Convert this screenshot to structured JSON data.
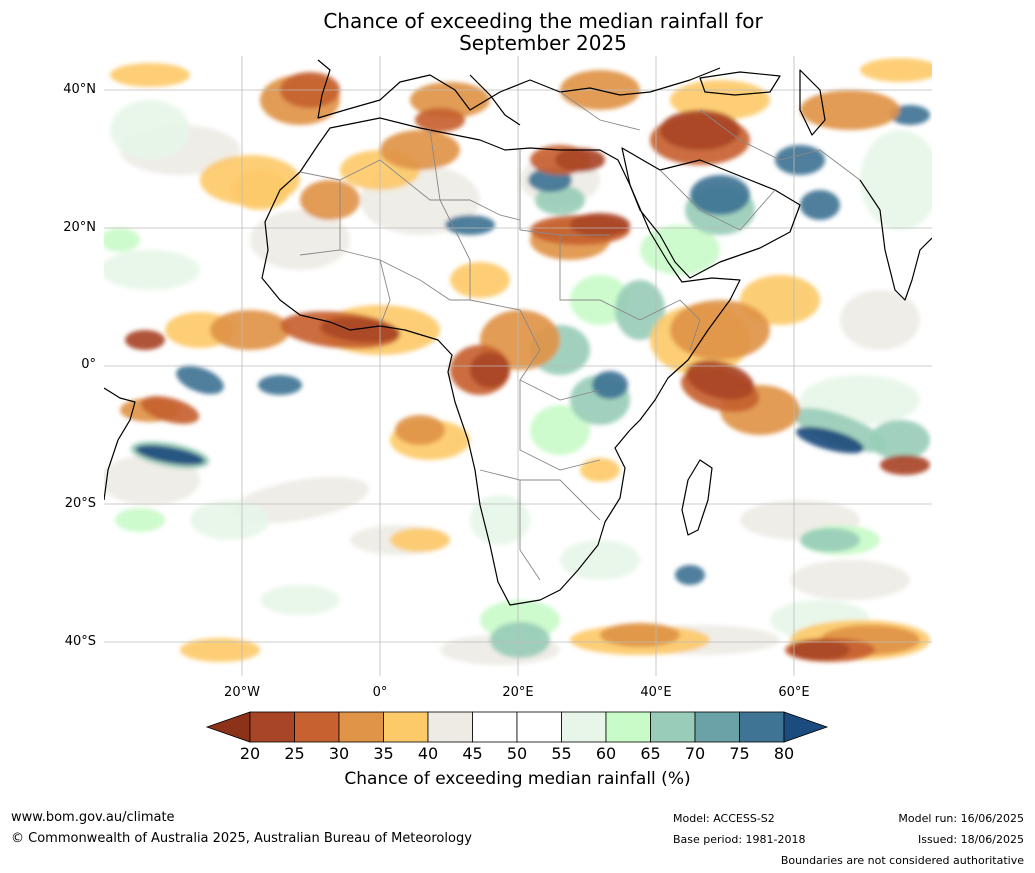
{
  "title_line1": "Chance of exceeding the median rainfall for",
  "title_line2": "September 2025",
  "lat_labels": [
    "40°N",
    "20°N",
    "0°",
    "20°S",
    "40°S"
  ],
  "lon_labels": [
    "20°W",
    "0°",
    "20°E",
    "40°E",
    "60°E"
  ],
  "colorbar": {
    "ticks": [
      "20",
      "25",
      "30",
      "35",
      "40",
      "45",
      "50",
      "55",
      "60",
      "65",
      "70",
      "75",
      "80"
    ],
    "colors": [
      "#8b3219",
      "#a94527",
      "#c7612f",
      "#e09447",
      "#fdca6a",
      "#eeebe5",
      "#ffffff",
      "#ffffff",
      "#e7f6e8",
      "#c9fbc9",
      "#99cdb9",
      "#6aa2a7",
      "#3f7495",
      "#1b4c7d"
    ],
    "label": "Chance of exceeding median rainfall (%)"
  },
  "footer": {
    "url": "www.bom.gov.au/climate",
    "copyright": "© Commonwealth of Australia 2025, Australian Bureau of Meteorology",
    "model": "Model: ACCESS-S2",
    "base_period": "Base period: 1981-2018",
    "model_run": "Model run: 16/06/2025",
    "issued": "Issued: 18/06/2025",
    "disclaimer": "Boundaries are not considered authoritative"
  }
}
